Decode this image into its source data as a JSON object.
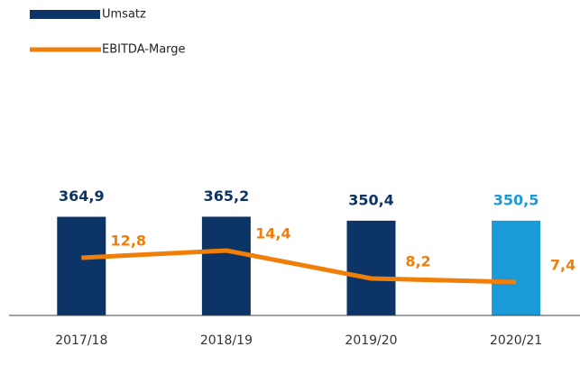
{
  "chart_data": {
    "type": "bar+line",
    "categories": [
      "2017/18",
      "2018/19",
      "2019/20",
      "2020/21"
    ],
    "series": [
      {
        "name": "Umsatz",
        "type": "bar",
        "color": "#0d3466",
        "colors": [
          "#0d3466",
          "#0d3466",
          "#0d3466",
          "#1a9ad6"
        ],
        "values": [
          364.9,
          365.2,
          350.4,
          350.5
        ],
        "value_labels": [
          "364,9",
          "365,2",
          "350,4",
          "350,5"
        ]
      },
      {
        "name": "EBITDA-Marge",
        "type": "line",
        "axis": "y2",
        "color": "#f07f09",
        "values": [
          12.8,
          14.4,
          8.2,
          7.4
        ],
        "value_labels": [
          "12,8",
          "14,4",
          "8,2",
          "7,4"
        ]
      }
    ],
    "ylim": [
      0,
      500
    ],
    "y2lim": [
      0,
      30
    ],
    "legend": "top-left",
    "grid": false
  }
}
